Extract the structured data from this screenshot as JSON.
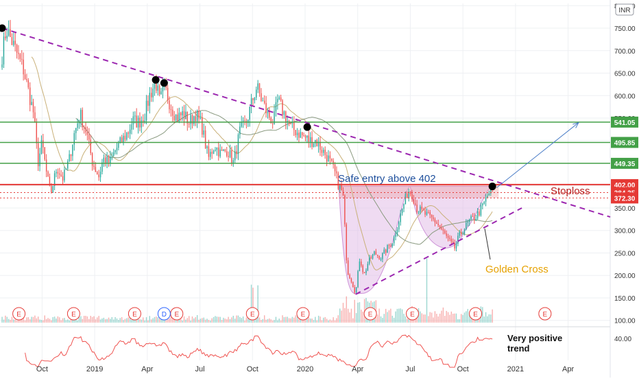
{
  "chart_data": {
    "type": "candlestick",
    "currency": "INR",
    "yaxis": {
      "ticks": [
        100,
        150,
        200,
        250,
        300,
        350,
        400,
        450,
        500,
        550,
        600,
        650,
        700,
        750,
        800
      ],
      "tick_labels": [
        "100.00",
        "150.00",
        "200.00",
        "250.00",
        "300.00",
        "350.00",
        "400.00",
        "450.00",
        "500.00",
        "550.00",
        "600.00",
        "650.00",
        "700.00",
        "750.00",
        "800.00"
      ],
      "range": [
        95,
        805
      ]
    },
    "xaxis": {
      "tick_labels": [
        "Oct",
        "2019",
        "Apr",
        "Jul",
        "Oct",
        "2020",
        "Apr",
        "Jul",
        "Oct",
        "2021",
        "Apr"
      ],
      "tick_t": [
        2018.75,
        2019.0,
        2019.25,
        2019.5,
        2019.75,
        2020.0,
        2020.25,
        2020.5,
        2020.75,
        2021.0,
        2021.25
      ],
      "range": [
        2018.55,
        2021.45
      ]
    },
    "price_path": [
      [
        2018.56,
        690
      ],
      [
        2018.58,
        750
      ],
      [
        2018.62,
        705
      ],
      [
        2018.66,
        660
      ],
      [
        2018.69,
        600
      ],
      [
        2018.71,
        560
      ],
      [
        2018.73,
        450
      ],
      [
        2018.75,
        495
      ],
      [
        2018.77,
        430
      ],
      [
        2018.79,
        380
      ],
      [
        2018.82,
        440
      ],
      [
        2018.85,
        415
      ],
      [
        2018.88,
        460
      ],
      [
        2018.9,
        510
      ],
      [
        2018.93,
        560
      ],
      [
        2018.96,
        520
      ],
      [
        2018.99,
        450
      ],
      [
        2019.02,
        420
      ],
      [
        2019.04,
        460
      ],
      [
        2019.07,
        450
      ],
      [
        2019.1,
        480
      ],
      [
        2019.13,
        500
      ],
      [
        2019.16,
        520
      ],
      [
        2019.18,
        545
      ],
      [
        2019.21,
        540
      ],
      [
        2019.24,
        560
      ],
      [
        2019.26,
        600
      ],
      [
        2019.29,
        630
      ],
      [
        2019.31,
        585
      ],
      [
        2019.33,
        620
      ],
      [
        2019.36,
        580
      ],
      [
        2019.39,
        550
      ],
      [
        2019.42,
        560
      ],
      [
        2019.45,
        540
      ],
      [
        2019.48,
        560
      ],
      [
        2019.51,
        530
      ],
      [
        2019.54,
        460
      ],
      [
        2019.57,
        490
      ],
      [
        2019.6,
        470
      ],
      [
        2019.63,
        480
      ],
      [
        2019.66,
        450
      ],
      [
        2019.69,
        520
      ],
      [
        2019.72,
        540
      ],
      [
        2019.75,
        590
      ],
      [
        2019.77,
        620
      ],
      [
        2019.79,
        595
      ],
      [
        2019.82,
        560
      ],
      [
        2019.85,
        540
      ],
      [
        2019.87,
        590
      ],
      [
        2019.9,
        560
      ],
      [
        2019.93,
        530
      ],
      [
        2019.96,
        520
      ],
      [
        2019.99,
        510
      ],
      [
        2020.02,
        500
      ],
      [
        2020.05,
        500
      ],
      [
        2020.08,
        480
      ],
      [
        2020.11,
        460
      ],
      [
        2020.14,
        430
      ],
      [
        2020.16,
        400
      ],
      [
        2020.18,
        380
      ],
      [
        2020.2,
        210
      ],
      [
        2020.22,
        190
      ],
      [
        2020.24,
        160
      ],
      [
        2020.26,
        240
      ],
      [
        2020.28,
        200
      ],
      [
        2020.3,
        230
      ],
      [
        2020.33,
        250
      ],
      [
        2020.36,
        240
      ],
      [
        2020.39,
        260
      ],
      [
        2020.42,
        280
      ],
      [
        2020.45,
        330
      ],
      [
        2020.47,
        360
      ],
      [
        2020.49,
        390
      ],
      [
        2020.51,
        380
      ],
      [
        2020.53,
        350
      ],
      [
        2020.56,
        340
      ],
      [
        2020.59,
        330
      ],
      [
        2020.62,
        320
      ],
      [
        2020.65,
        300
      ],
      [
        2020.68,
        280
      ],
      [
        2020.71,
        260
      ],
      [
        2020.73,
        285
      ],
      [
        2020.75,
        300
      ],
      [
        2020.78,
        320
      ],
      [
        2020.81,
        330
      ],
      [
        2020.84,
        350
      ],
      [
        2020.87,
        380
      ],
      [
        2020.89,
        395
      ]
    ],
    "marked_points": [
      {
        "t": 2018.56,
        "y": 750
      },
      {
        "t": 2019.29,
        "y": 635
      },
      {
        "t": 2019.33,
        "y": 628
      },
      {
        "t": 2020.01,
        "y": 530
      },
      {
        "t": 2020.89,
        "y": 398
      }
    ],
    "horizontal_levels": [
      {
        "value": 541.05,
        "label": "541.05",
        "color": "#43a047"
      },
      {
        "value": 495.85,
        "label": "495.85",
        "color": "#43a047"
      },
      {
        "value": 449.35,
        "label": "449.35",
        "color": "#43a047"
      },
      {
        "value": 402.0,
        "label": "402.00",
        "color": "#e53935"
      },
      {
        "value": 384.35,
        "label": "384.35",
        "color": "#e53935"
      },
      {
        "value": 372.3,
        "label": "372.30",
        "color": "#e53935"
      }
    ],
    "trendlines": [
      {
        "kind": "resistance",
        "from": [
          2018.56,
          750
        ],
        "to": [
          2021.45,
          330
        ]
      },
      {
        "kind": "support",
        "from": [
          2020.24,
          158
        ],
        "to": [
          2021.03,
          350
        ]
      }
    ],
    "projection": {
      "from": [
        2020.91,
        395
      ],
      "to": [
        2021.3,
        540
      ]
    },
    "event_markers": {
      "earnings_label": "E",
      "dividend_label": "D",
      "earnings_t": [
        2018.64,
        2018.9,
        2019.19,
        2019.39,
        2019.75,
        2019.99,
        2020.31,
        2020.51,
        2020.81,
        2021.14
      ],
      "dividend_t": [
        2019.33
      ]
    },
    "rsi_label": "40.00",
    "annotations": {
      "safe_entry": "Safe entry above 402",
      "stoploss": "Stoploss",
      "golden_cross": "Golden Cross",
      "very_positive_trend": "Very positive trend"
    },
    "colors": {
      "up": "#26a69a",
      "down": "#ef5350",
      "trendline": "#9c27b0",
      "ma_short": "#c9b078",
      "ma_long": "#8a9a80",
      "cup_fill": "#e1bee7",
      "stoploss_text": "#b71c1c",
      "entry_text": "#1e4f9c",
      "golden_text": "#e6a100",
      "projection": "#4d7fc8",
      "rsi": "#ef5350"
    }
  }
}
